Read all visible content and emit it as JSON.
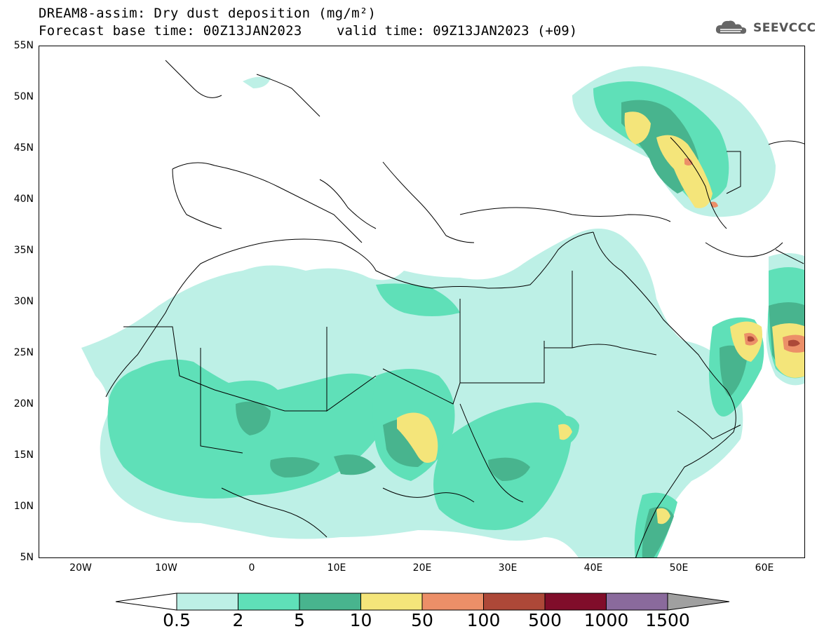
{
  "title_line1": "DREAM8-assim: Dry dust deposition (mg/m²)",
  "title_line2": "Forecast base time: 00Z13JAN2023",
  "valid_time": "valid time: 09Z13JAN2023 (+09)",
  "logo_text": "SEEVCCC",
  "lat_labels": [
    "55N",
    "50N",
    "45N",
    "40N",
    "35N",
    "30N",
    "25N",
    "20N",
    "15N",
    "10N",
    "5N"
  ],
  "lon_labels": [
    "20W",
    "10W",
    "0",
    "10E",
    "20E",
    "30E",
    "40E",
    "50E",
    "60E"
  ],
  "colorbar": {
    "labels": [
      "0.5",
      "2",
      "5",
      "10",
      "50",
      "100",
      "500",
      "1000",
      "1500"
    ],
    "colors": [
      "#bdf0e6",
      "#5fe0b8",
      "#48b48e",
      "#f4e57a",
      "#ec8f68",
      "#ad4838",
      "#800d2a",
      "#8a6a9c"
    ],
    "under_color": "#ffffff",
    "over_color": "#a0a0a0"
  },
  "colors": {
    "level1": "#bdf0e6",
    "level2": "#5fe0b8",
    "level3": "#48b48e",
    "level4": "#f4e57a",
    "level5": "#ec8f68",
    "level6": "#ad4838"
  }
}
